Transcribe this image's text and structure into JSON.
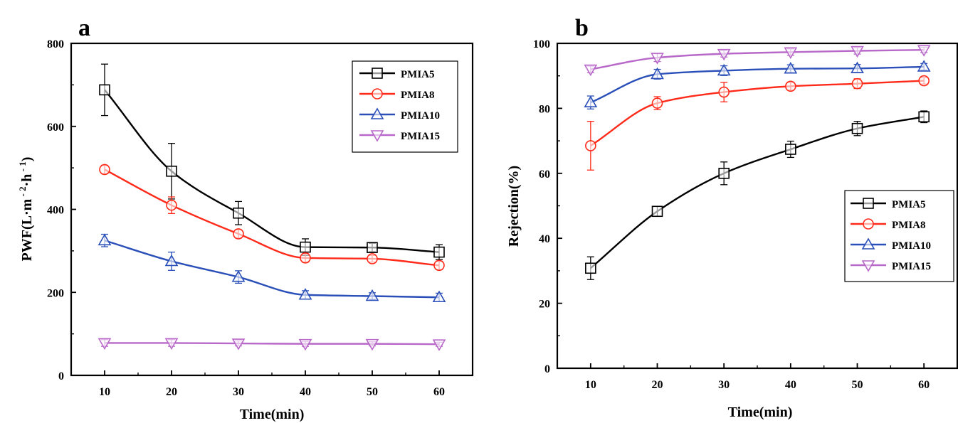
{
  "chart_data": [
    {
      "type": "line",
      "panel_label": "a",
      "xlabel": "Time(min)",
      "ylabel": "PWF(L·m⁻²·h⁻¹)",
      "ylabel_parts": {
        "base": "PWF(L·m",
        "sup1": " - 2",
        "mid": "·h",
        "sup2": " - 1",
        "end": ")"
      },
      "xlim": [
        5,
        65
      ],
      "ylim": [
        0,
        800
      ],
      "x": [
        10,
        20,
        30,
        40,
        50,
        60
      ],
      "x_ticks": [
        10,
        20,
        30,
        40,
        50,
        60
      ],
      "y_ticks": [
        0,
        200,
        400,
        600,
        800
      ],
      "legend_position": "top-right",
      "series": [
        {
          "name": "PMIA5",
          "color": "#000000",
          "marker": "square",
          "values": [
            688,
            492,
            391,
            309,
            308,
            297
          ],
          "errors": [
            62,
            67,
            28,
            20,
            10,
            18
          ]
        },
        {
          "name": "PMIA8",
          "color": "#ff2a1a",
          "marker": "circle",
          "values": [
            496,
            410,
            341,
            283,
            281,
            265
          ],
          "errors": [
            10,
            20,
            10,
            10,
            8,
            10
          ]
        },
        {
          "name": "PMIA10",
          "color": "#2a4fb8",
          "marker": "triangle-up",
          "values": [
            325,
            275,
            237,
            194,
            191,
            188
          ],
          "errors": [
            15,
            22,
            15,
            10,
            8,
            10
          ]
        },
        {
          "name": "PMIA15",
          "color": "#b868c8",
          "marker": "triangle-down",
          "values": [
            78,
            78,
            77,
            76,
            76,
            75
          ],
          "errors": [
            8,
            8,
            6,
            6,
            5,
            5
          ]
        }
      ]
    },
    {
      "type": "line",
      "panel_label": "b",
      "xlabel": "Time(min)",
      "ylabel": "Rejection(%)",
      "xlim": [
        5,
        65
      ],
      "ylim": [
        0,
        100
      ],
      "x": [
        10,
        20,
        30,
        40,
        50,
        60
      ],
      "x_ticks": [
        10,
        20,
        30,
        40,
        50,
        60
      ],
      "y_ticks": [
        0,
        20,
        40,
        60,
        80,
        100
      ],
      "legend_position": "center-right",
      "series": [
        {
          "name": "PMIA5",
          "color": "#000000",
          "marker": "square",
          "values": [
            30.8,
            48.3,
            60.0,
            67.4,
            73.8,
            77.4
          ],
          "errors": [
            3.5,
            1.5,
            3.5,
            2.5,
            2.2,
            1.8
          ]
        },
        {
          "name": "PMIA8",
          "color": "#ff2a1a",
          "marker": "circle",
          "values": [
            68.5,
            81.6,
            85.0,
            86.8,
            87.6,
            88.5
          ],
          "errors": [
            7.5,
            2.0,
            3.0,
            1.2,
            1.5,
            1.0
          ]
        },
        {
          "name": "PMIA10",
          "color": "#2a4fb8",
          "marker": "triangle-up",
          "values": [
            81.8,
            90.5,
            91.6,
            92.2,
            92.3,
            92.8
          ],
          "errors": [
            2.0,
            1.5,
            1.5,
            1.2,
            1.2,
            1.0
          ]
        },
        {
          "name": "PMIA15",
          "color": "#b868c8",
          "marker": "triangle-down",
          "values": [
            92.0,
            95.6,
            96.8,
            97.3,
            97.7,
            98.0
          ],
          "errors": [
            1.0,
            1.2,
            1.0,
            1.0,
            1.0,
            0.8
          ]
        }
      ]
    }
  ]
}
